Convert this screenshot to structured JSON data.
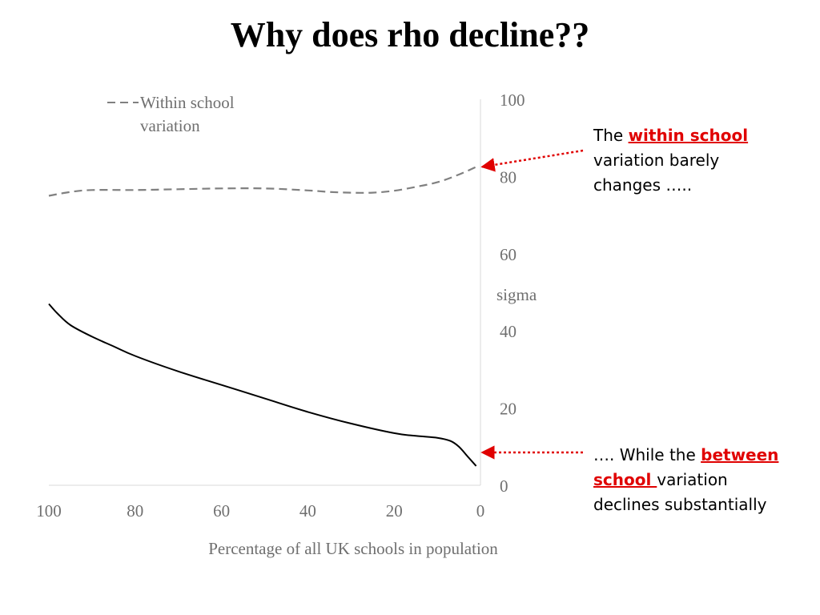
{
  "chart_data": {
    "type": "line",
    "title": "Why does rho decline??",
    "xlabel": "Percentage of all UK schools in population",
    "ylabel": "sigma",
    "xlim": [
      100,
      0
    ],
    "ylim": [
      0,
      100
    ],
    "x_ticks": [
      100,
      80,
      60,
      40,
      20,
      0
    ],
    "y_ticks": [
      0,
      20,
      40,
      60,
      80,
      100
    ],
    "grid": false,
    "legend": "top-left",
    "series": [
      {
        "name": "Within school variation",
        "style": "dashed",
        "color": "#808080",
        "x": [
          100,
          95,
          90,
          80,
          70,
          60,
          50,
          40,
          35,
          30,
          25,
          20,
          15,
          10,
          5,
          1
        ],
        "y": [
          75,
          76,
          76.5,
          76.5,
          76.7,
          76.9,
          76.9,
          76.4,
          76.0,
          75.8,
          75.8,
          76.3,
          77.3,
          78.5,
          80.5,
          82.5
        ]
      },
      {
        "style": "solid",
        "color": "#000000",
        "x": [
          100,
          98,
          95,
          90,
          85,
          80,
          70,
          60,
          50,
          40,
          30,
          20,
          15,
          10,
          7,
          5,
          3,
          1
        ],
        "y": [
          47,
          44.5,
          41.5,
          38.5,
          36,
          33.5,
          29.5,
          26,
          22.5,
          19,
          16,
          13.5,
          12.8,
          12.3,
          11.5,
          10,
          7.5,
          5
        ]
      }
    ],
    "annotations": [
      {
        "before": "The ",
        "highlight": "within school",
        "after": "variation barely changes …..",
        "color": "#e00000",
        "target_x": 0,
        "target_y": 82.5
      },
      {
        "before": "…. While the ",
        "highlight": "between school ",
        "after": "variation declines substantially",
        "color": "#e00000",
        "target_x": 0,
        "target_y": 8.5
      }
    ]
  }
}
